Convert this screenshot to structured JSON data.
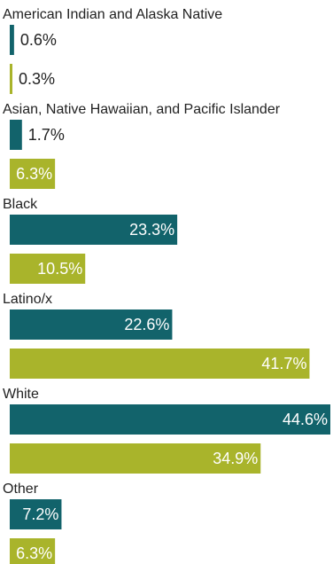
{
  "chart_data": {
    "type": "bar",
    "orientation": "horizontal",
    "categories": [
      "American Indian and Alaska Native",
      "Asian, Native Hawaiian, and Pacific Islander",
      "Black",
      "Latino/x",
      "White",
      "Other"
    ],
    "series": [
      {
        "values": [
          0.6,
          1.7,
          23.3,
          22.6,
          44.6,
          7.2
        ],
        "labels": [
          "0.6%",
          "1.7%",
          "23.3%",
          "22.6%",
          "44.6%",
          "7.2%"
        ],
        "color": "#12636b"
      },
      {
        "values": [
          0.3,
          6.3,
          10.5,
          41.7,
          34.9,
          6.3
        ],
        "labels": [
          "0.3%",
          "6.3%",
          "10.5%",
          "41.7%",
          "34.9%",
          "6.3%"
        ],
        "color": "#a9b42b"
      }
    ],
    "xlim": [
      0,
      44.6
    ],
    "grid": false,
    "legend": "none",
    "title": "",
    "xlabel": "",
    "ylabel": ""
  }
}
